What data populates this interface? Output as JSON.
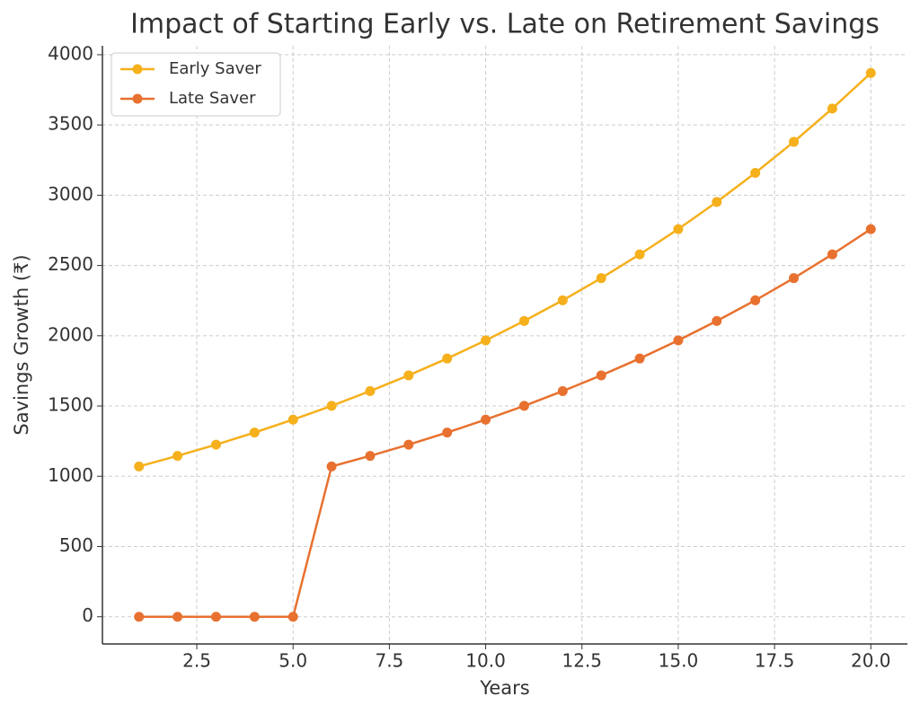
{
  "chart_data": {
    "type": "line",
    "title": "Impact of Starting Early vs. Late on Retirement Savings",
    "x_label": "Years",
    "y_label": "Savings Growth (₹)",
    "x": [
      1,
      2,
      3,
      4,
      5,
      6,
      7,
      8,
      9,
      10,
      11,
      12,
      13,
      14,
      15,
      16,
      17,
      18,
      19,
      20
    ],
    "series": [
      {
        "name": "Early Saver",
        "color": "#f5b01c",
        "values": [
          1070,
          1145,
          1225,
          1311,
          1403,
          1501,
          1606,
          1718,
          1838,
          1967,
          2105,
          2252,
          2410,
          2579,
          2759,
          2952,
          3159,
          3380,
          3617,
          3870
        ]
      },
      {
        "name": "Late Saver",
        "color": "#e8712f",
        "values": [
          0,
          0,
          0,
          0,
          0,
          1070,
          1145,
          1225,
          1311,
          1403,
          1501,
          1606,
          1718,
          1838,
          1967,
          2105,
          2252,
          2410,
          2579,
          2759
        ]
      }
    ],
    "xlim": [
      0.05,
      20.95
    ],
    "xticks": [
      2.5,
      {
        "value": 5,
        "label": "5.0"
      },
      7.5,
      {
        "value": 10,
        "label": "10.0"
      },
      12.5,
      {
        "value": 15,
        "label": "15.0"
      },
      17.5,
      {
        "value": 20,
        "label": "20.0"
      }
    ],
    "ylim": [
      -193.5,
      4063.5
    ],
    "yticks": [
      0,
      500,
      1000,
      1500,
      2000,
      2500,
      3000,
      3500,
      4000
    ],
    "grid": true,
    "legend": "upper-left"
  }
}
